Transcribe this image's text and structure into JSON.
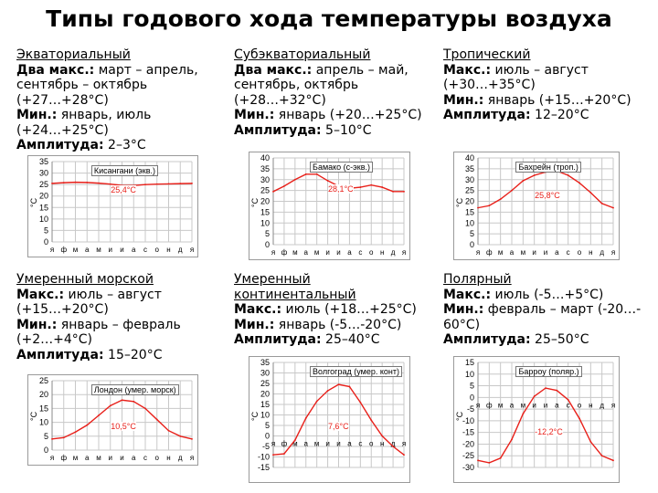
{
  "title": "Типы годового хода температуры воздуха",
  "blocks": [
    {
      "lines": [
        {
          "h": "Экваториальный"
        },
        {
          "b": "Два макс.:",
          "t": " март – апрель,"
        },
        {
          "t": "сентябрь – октябрь"
        },
        {
          "t": "(+27…+28°С)"
        },
        {
          "b": "Мин.:",
          "t": " январь, июль"
        },
        {
          "t": "(+24…+25°С)"
        },
        {
          "b": "Амплитуда:",
          "t": " 2–3°С"
        }
      ]
    },
    {
      "lines": [
        {
          "h": "Субэкваториальный"
        },
        {
          "b": "Два макс.:",
          "t": " апрель – май,"
        },
        {
          "t": "сентябрь, октябрь"
        },
        {
          "t": "(+28…+32°С)"
        },
        {
          "b": "Мин.:",
          "t": " январь (+20…+25°С)"
        },
        {
          "b": "Амплитуда:",
          "t": " 5–10°С"
        }
      ]
    },
    {
      "lines": [
        {
          "h": "Тропический"
        },
        {
          "b": "Макс.:",
          "t": " июль – август"
        },
        {
          "t": "(+30…+35°С)"
        },
        {
          "b": "Мин.:",
          "t": " январь (+15…+20°С)"
        },
        {
          "b": "Амплитуда:",
          "t": " 12–20°С"
        }
      ]
    },
    {
      "lines": [
        {
          "h": "Умеренный морской"
        },
        {
          "b": "Макс.:",
          "t": " июль – август"
        },
        {
          "t": "(+15…+20°С)"
        },
        {
          "b": "Мин.:",
          "t": " январь – февраль"
        },
        {
          "t": "(+2…+4°С)"
        },
        {
          "b": "Амплитуда:",
          "t": " 15–20°С"
        }
      ]
    },
    {
      "lines": [
        {
          "h": "Умеренный"
        },
        {
          "h": "континентальный"
        },
        {
          "b": "Макс.:",
          "t": " июль (+18…+25°С)"
        },
        {
          "b": "Мин.:",
          "t": " январь (-5…-20°С)"
        },
        {
          "b": "Амплитуда:",
          "t": " 25–40°С"
        }
      ]
    },
    {
      "lines": [
        {
          "h": "Полярный"
        },
        {
          "b": "Макс.:",
          "t": " июль (-5…+5°С)"
        },
        {
          "b": "Мин.:",
          "t": " февраль – март (-20…-"
        },
        {
          "t": "60°С)"
        },
        {
          "b": "Амплитуда:",
          "t": " 25–50°С"
        }
      ]
    }
  ],
  "colors": {
    "line": "#e8201a",
    "grid": "#c8c8c8",
    "axis": "#888888"
  },
  "chart_data": [
    {
      "type": "line",
      "title": "Кисангани (экв.)",
      "annotation": "25,4°С",
      "ylabel": "°С",
      "ylim": [
        0,
        35
      ],
      "yticks": [
        0,
        5,
        10,
        15,
        20,
        25,
        30,
        35
      ],
      "categories": [
        "я",
        "ф",
        "м",
        "а",
        "м",
        "и",
        "и",
        "а",
        "с",
        "о",
        "н",
        "д",
        "я"
      ],
      "series": [
        {
          "values": [
            25.5,
            25.8,
            26,
            25.9,
            25.6,
            25.2,
            24.6,
            24.6,
            25,
            25.2,
            25.3,
            25.4,
            25.5
          ]
        }
      ]
    },
    {
      "type": "line",
      "title": "Бамако (с-экв.)",
      "annotation": "28,1°С",
      "ylabel": "°С",
      "ylim": [
        0,
        40
      ],
      "yticks": [
        0,
        5,
        10,
        15,
        20,
        25,
        30,
        35,
        40
      ],
      "categories": [
        "я",
        "ф",
        "м",
        "а",
        "м",
        "и",
        "и",
        "а",
        "с",
        "о",
        "н",
        "д",
        "я"
      ],
      "series": [
        {
          "values": [
            24.5,
            27,
            30,
            32.5,
            32.5,
            29.5,
            27,
            26,
            26.5,
            27.5,
            26.5,
            24.5,
            24.5
          ]
        }
      ]
    },
    {
      "type": "line",
      "title": "Бахрейн (троп.)",
      "annotation": "25,8°С",
      "ylabel": "°С",
      "ylim": [
        0,
        40
      ],
      "yticks": [
        0,
        5,
        10,
        15,
        20,
        25,
        30,
        35,
        40
      ],
      "categories": [
        "я",
        "ф",
        "м",
        "а",
        "м",
        "и",
        "и",
        "а",
        "с",
        "о",
        "н",
        "д",
        "я"
      ],
      "series": [
        {
          "values": [
            17,
            18,
            21,
            25,
            29.5,
            32,
            33.5,
            34,
            32,
            28.5,
            24,
            19,
            17
          ]
        }
      ]
    },
    {
      "type": "line",
      "title": "Лондон (умер. морск)",
      "annotation": "10,5°С",
      "ylabel": "°С",
      "ylim": [
        0,
        25
      ],
      "yticks": [
        0,
        5,
        10,
        15,
        20,
        25
      ],
      "categories": [
        "я",
        "ф",
        "м",
        "а",
        "м",
        "и",
        "и",
        "а",
        "с",
        "о",
        "н",
        "д",
        "я"
      ],
      "series": [
        {
          "values": [
            4,
            4.5,
            6.5,
            9,
            12.5,
            16,
            18,
            17.5,
            15,
            11,
            7,
            5,
            4
          ]
        }
      ]
    },
    {
      "type": "line",
      "title": "Волгоград (умер. конт)",
      "annotation": "7,6°С",
      "ylabel": "°С",
      "ylim": [
        -15,
        35
      ],
      "yticks": [
        -15,
        -10,
        -5,
        0,
        5,
        10,
        15,
        20,
        25,
        30,
        35
      ],
      "categories": [
        "я",
        "ф",
        "м",
        "а",
        "м",
        "и",
        "и",
        "а",
        "с",
        "о",
        "н",
        "д",
        "я"
      ],
      "series": [
        {
          "values": [
            -9,
            -8.5,
            -2,
            8.5,
            16.5,
            21.5,
            24.5,
            23.5,
            16,
            7.5,
            0,
            -5,
            -9
          ]
        }
      ]
    },
    {
      "type": "line",
      "title": "Барроу (поляр.)",
      "annotation": "-12,2°С",
      "ylabel": "°С",
      "ylim": [
        -30,
        15
      ],
      "yticks": [
        -30,
        -25,
        -20,
        -15,
        -10,
        -5,
        0,
        5,
        10,
        15
      ],
      "categories": [
        "я",
        "ф",
        "м",
        "а",
        "м",
        "и",
        "и",
        "а",
        "с",
        "о",
        "н",
        "д",
        "я"
      ],
      "series": [
        {
          "values": [
            -27,
            -28,
            -26,
            -18,
            -7,
            0.5,
            4,
            3,
            -1,
            -9,
            -19,
            -25,
            -27
          ]
        }
      ]
    }
  ]
}
